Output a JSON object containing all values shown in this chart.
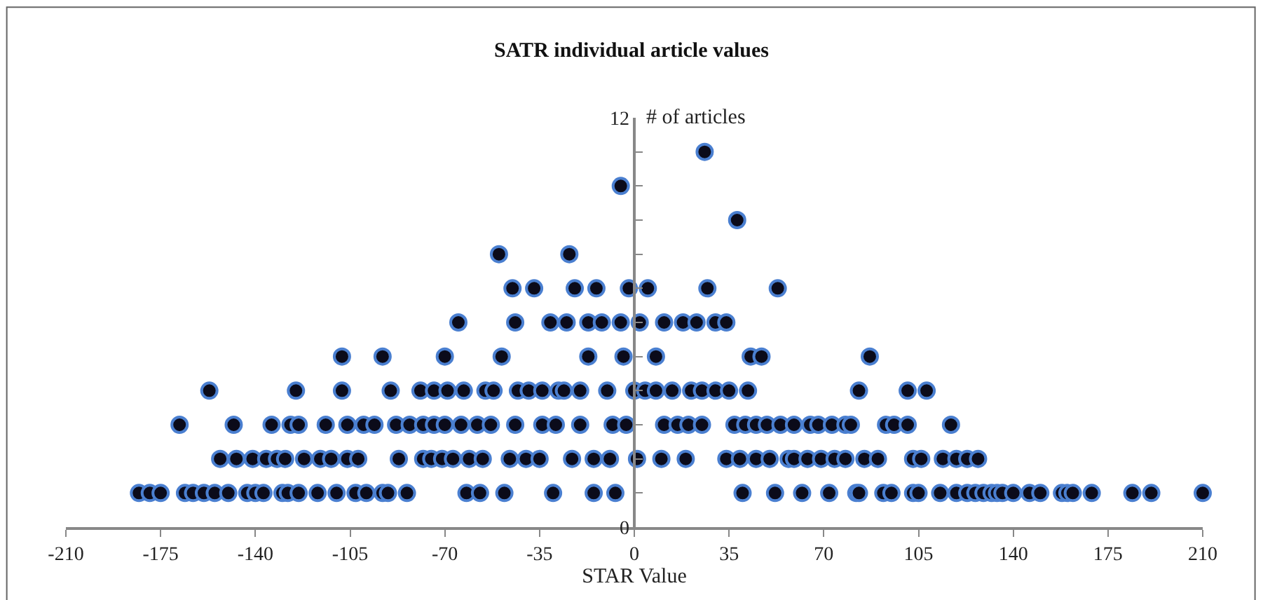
{
  "chart_data": {
    "type": "scatter",
    "title": "SATR individual article values",
    "xlabel": "STAR Value",
    "ylabel": "# of articles",
    "xlim": [
      -210,
      210
    ],
    "xticks": [
      -210,
      -175,
      -140,
      -105,
      -70,
      -35,
      0,
      35,
      70,
      105,
      140,
      175,
      210
    ],
    "ylim": [
      0,
      12
    ],
    "yticks": [
      0,
      {
        "value": 1,
        "label": null
      },
      {
        "value": 2,
        "label": null
      },
      {
        "value": 3,
        "label": null
      },
      {
        "value": 4,
        "label": null
      },
      {
        "value": 5,
        "label": null
      },
      {
        "value": 6,
        "label": null
      },
      {
        "value": 7,
        "label": null
      },
      {
        "value": 8,
        "label": null
      },
      {
        "value": 9,
        "label": null
      },
      {
        "value": 10,
        "label": null
      },
      {
        "value": 11,
        "label": null
      },
      12
    ],
    "marker": "circle",
    "series": [
      {
        "color": "#0b0b1a",
        "x": [
          -183,
          -179,
          -175,
          -166,
          -163,
          -159,
          -155,
          -150,
          -143,
          -140,
          -137,
          -130,
          -128,
          -124,
          -117,
          -110,
          -103,
          -99,
          -93,
          -91,
          -84,
          -62,
          -57,
          -48,
          -30,
          -15,
          -7,
          40,
          52,
          62,
          72,
          82,
          83,
          92,
          95,
          103,
          105,
          113,
          119,
          123,
          126,
          129,
          132,
          134,
          136,
          140,
          146,
          150,
          158,
          160,
          162,
          169,
          184,
          191,
          210,
          -153,
          -147,
          -141,
          -136,
          -132,
          -129,
          -122,
          -116,
          -112,
          -106,
          -102,
          -87,
          -78,
          -75,
          -71,
          -67,
          -61,
          -56,
          -46,
          -40,
          -35,
          -23,
          -15,
          -9,
          1,
          10,
          19,
          34,
          39,
          45,
          50,
          57,
          59,
          64,
          69,
          74,
          78,
          85,
          90,
          103,
          106,
          114,
          119,
          123,
          127,
          -168,
          -148,
          -134,
          -127,
          -124,
          -114,
          -106,
          -100,
          -96,
          -88,
          -83,
          -78,
          -74,
          -70,
          -64,
          -58,
          -53,
          -44,
          -34,
          -29,
          -20,
          -8,
          -3,
          11,
          16,
          20,
          25,
          37,
          41,
          45,
          49,
          54,
          59,
          65,
          68,
          73,
          78,
          80,
          93,
          96,
          101,
          117,
          -157,
          -125,
          -108,
          -90,
          -79,
          -74,
          -69,
          -63,
          -55,
          -52,
          -43,
          -39,
          -34,
          -28,
          -26,
          -20,
          -10,
          0,
          4,
          8,
          14,
          21,
          25,
          30,
          35,
          42,
          83,
          101,
          108,
          -108,
          -93,
          -70,
          -49,
          -17,
          -4,
          8,
          43,
          47,
          87,
          -65,
          -44,
          -31,
          -25,
          -17,
          -12,
          -5,
          2,
          11,
          18,
          23,
          30,
          34,
          -45,
          -37,
          -22,
          -14,
          -2,
          5,
          27,
          53,
          -50,
          -24,
          38,
          -5,
          26
        ],
        "values": [
          1,
          1,
          1,
          1,
          1,
          1,
          1,
          1,
          1,
          1,
          1,
          1,
          1,
          1,
          1,
          1,
          1,
          1,
          1,
          1,
          1,
          1,
          1,
          1,
          1,
          1,
          1,
          1,
          1,
          1,
          1,
          1,
          1,
          1,
          1,
          1,
          1,
          1,
          1,
          1,
          1,
          1,
          1,
          1,
          1,
          1,
          1,
          1,
          1,
          1,
          1,
          1,
          1,
          1,
          1,
          2,
          2,
          2,
          2,
          2,
          2,
          2,
          2,
          2,
          2,
          2,
          2,
          2,
          2,
          2,
          2,
          2,
          2,
          2,
          2,
          2,
          2,
          2,
          2,
          2,
          2,
          2,
          2,
          2,
          2,
          2,
          2,
          2,
          2,
          2,
          2,
          2,
          2,
          2,
          2,
          2,
          2,
          2,
          2,
          2,
          3,
          3,
          3,
          3,
          3,
          3,
          3,
          3,
          3,
          3,
          3,
          3,
          3,
          3,
          3,
          3,
          3,
          3,
          3,
          3,
          3,
          3,
          3,
          3,
          3,
          3,
          3,
          3,
          3,
          3,
          3,
          3,
          3,
          3,
          3,
          3,
          3,
          3,
          3,
          3,
          3,
          3,
          4,
          4,
          4,
          4,
          4,
          4,
          4,
          4,
          4,
          4,
          4,
          4,
          4,
          4,
          4,
          4,
          4,
          4,
          4,
          4,
          4,
          4,
          4,
          4,
          4,
          4,
          4,
          4,
          4,
          5,
          5,
          5,
          5,
          5,
          5,
          5,
          5,
          5,
          5,
          6,
          6,
          6,
          6,
          6,
          6,
          6,
          6,
          6,
          6,
          6,
          6,
          6,
          7,
          7,
          7,
          7,
          7,
          7,
          7,
          7,
          8,
          8,
          9,
          10,
          11
        ]
      }
    ]
  }
}
